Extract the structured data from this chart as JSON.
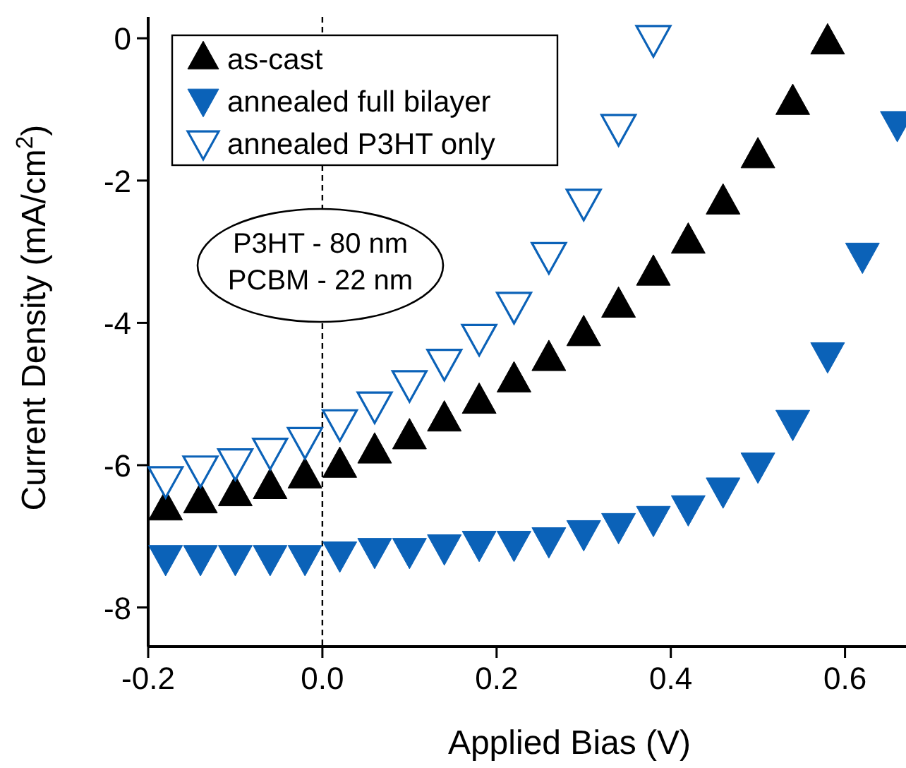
{
  "chart_data": {
    "type": "scatter",
    "xlabel": "Applied Bias (V)",
    "ylabel": "Current Density (mA/cm$^{2}$)",
    "xlim": [
      -0.2,
      0.67
    ],
    "ylim": [
      -8.55,
      0.3
    ],
    "xticks": [
      {
        "value": -0.2,
        "label": "-0.2"
      },
      {
        "value": 0,
        "label": "0.0"
      },
      {
        "value": 0.2,
        "label": "0.2"
      },
      {
        "value": 0.4,
        "label": "0.4"
      },
      {
        "value": 0.6,
        "label": "0.6"
      }
    ],
    "yticks": [
      {
        "value": 0,
        "label": "0"
      },
      {
        "value": -2,
        "label": "-2"
      },
      {
        "value": -4,
        "label": "-4"
      },
      {
        "value": -6,
        "label": "-6"
      },
      {
        "value": -8,
        "label": "-8"
      }
    ],
    "grid": false,
    "legend": "top left",
    "ref_lines": [
      {
        "axis": "x",
        "value": 0,
        "line_style": "dashed",
        "color": "#000000"
      }
    ],
    "annotations": [
      "P3HT - 80 nm\nPCBM - 22 nm"
    ],
    "series": [
      {
        "name": "as-cast",
        "color": "#000000",
        "marker": "triangle",
        "x": [
          -0.18,
          -0.14,
          -0.1,
          -0.06,
          -0.02,
          0.02,
          0.06,
          0.1,
          0.14,
          0.18,
          0.22,
          0.26,
          0.3,
          0.34,
          0.38,
          0.42,
          0.46,
          0.5,
          0.54,
          0.58
        ],
        "values": [
          -6.6,
          -6.5,
          -6.4,
          -6.3,
          -6.15,
          -6.0,
          -5.8,
          -5.6,
          -5.35,
          -5.1,
          -4.8,
          -4.5,
          -4.15,
          -3.75,
          -3.3,
          -2.85,
          -2.3,
          -1.65,
          -0.9,
          -0.05
        ]
      },
      {
        "name": "annealed full bilayer",
        "color": "#0b62b8",
        "marker": "triangle-down",
        "x": [
          -0.18,
          -0.14,
          -0.1,
          -0.06,
          -0.02,
          0.02,
          0.06,
          0.1,
          0.14,
          0.18,
          0.22,
          0.26,
          0.3,
          0.34,
          0.38,
          0.42,
          0.46,
          0.5,
          0.54,
          0.58,
          0.62,
          0.66
        ],
        "values": [
          -7.3,
          -7.3,
          -7.3,
          -7.3,
          -7.3,
          -7.25,
          -7.2,
          -7.2,
          -7.15,
          -7.1,
          -7.1,
          -7.05,
          -6.95,
          -6.85,
          -6.75,
          -6.6,
          -6.35,
          -6.0,
          -5.4,
          -4.45,
          -3.05,
          -1.2
        ]
      },
      {
        "name": "annealed P3HT only",
        "color": "#0b62b8",
        "marker": "triangle-down-open",
        "x": [
          -0.18,
          -0.14,
          -0.1,
          -0.06,
          -0.02,
          0.02,
          0.06,
          0.1,
          0.14,
          0.18,
          0.22,
          0.26,
          0.3,
          0.34,
          0.38
        ],
        "values": [
          -6.2,
          -6.05,
          -5.95,
          -5.8,
          -5.65,
          -5.4,
          -5.15,
          -4.85,
          -4.55,
          -4.2,
          -3.75,
          -3.05,
          -2.3,
          -1.25,
          0.0
        ]
      }
    ]
  }
}
